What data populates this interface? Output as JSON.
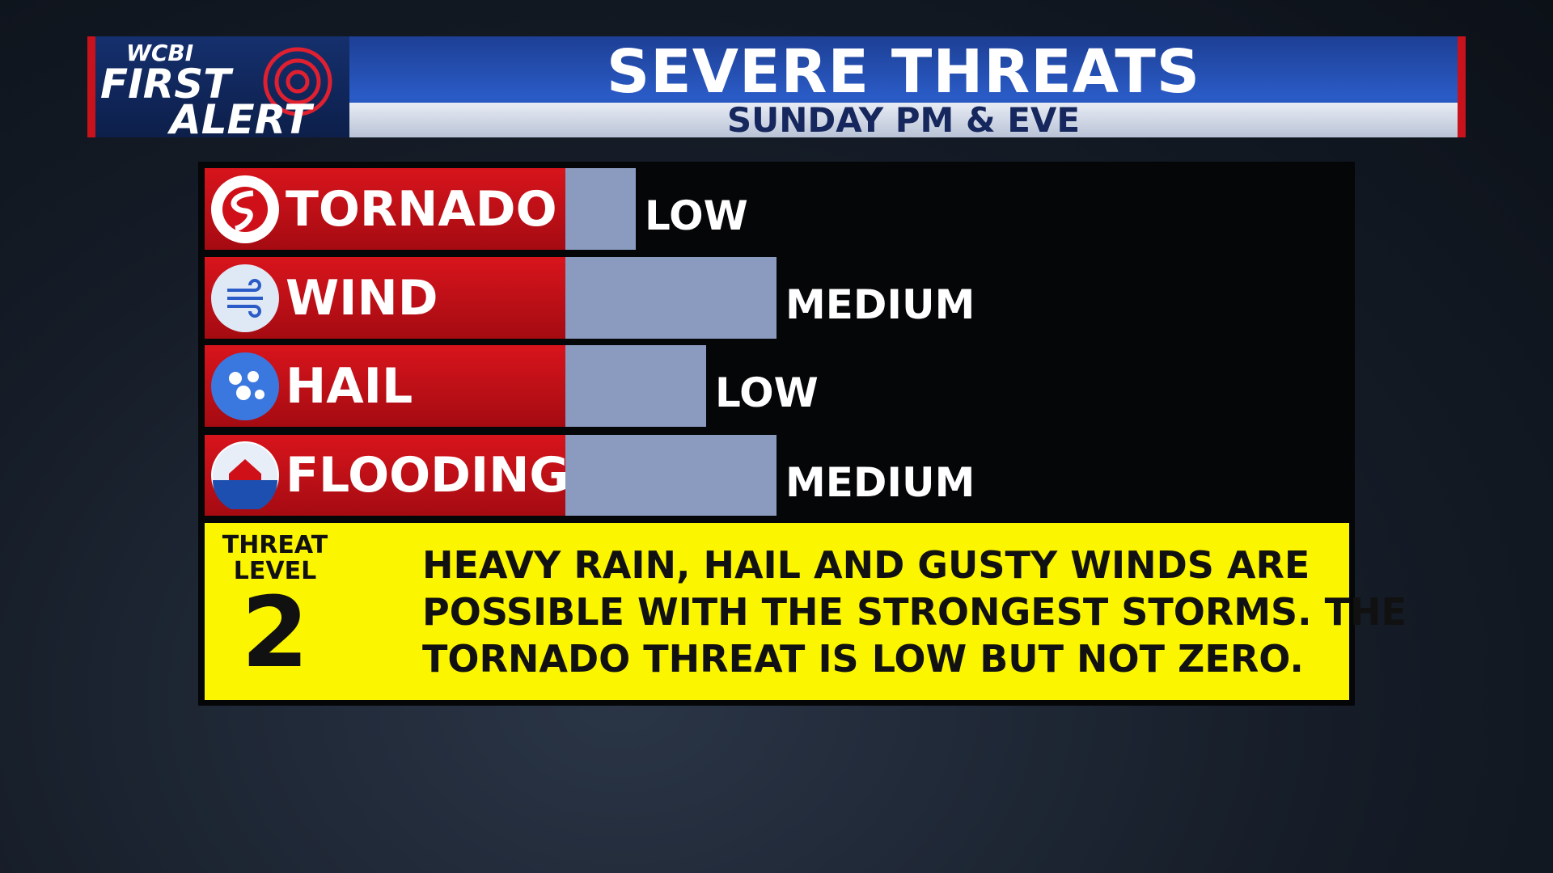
{
  "header": {
    "logo": {
      "network": "WCBI",
      "line1": "FIRST",
      "line2": "ALERT"
    },
    "title": "SEVERE THREATS",
    "subtitle": "SUNDAY PM & EVE"
  },
  "threats": [
    {
      "name": "TORNADO",
      "level": "LOW"
    },
    {
      "name": "WIND",
      "level": "MEDIUM"
    },
    {
      "name": "HAIL",
      "level": "LOW"
    },
    {
      "name": "FLOODING",
      "level": "MEDIUM"
    }
  ],
  "threat_level": {
    "label_line1": "THREAT",
    "label_line2": "LEVEL",
    "number": "2"
  },
  "message": [
    "HEAVY RAIN, HAIL AND GUSTY WINDS ARE",
    "POSSIBLE WITH THE STRONGEST STORMS. THE",
    "TORNADO THREAT IS LOW BUT NOT ZERO."
  ]
}
